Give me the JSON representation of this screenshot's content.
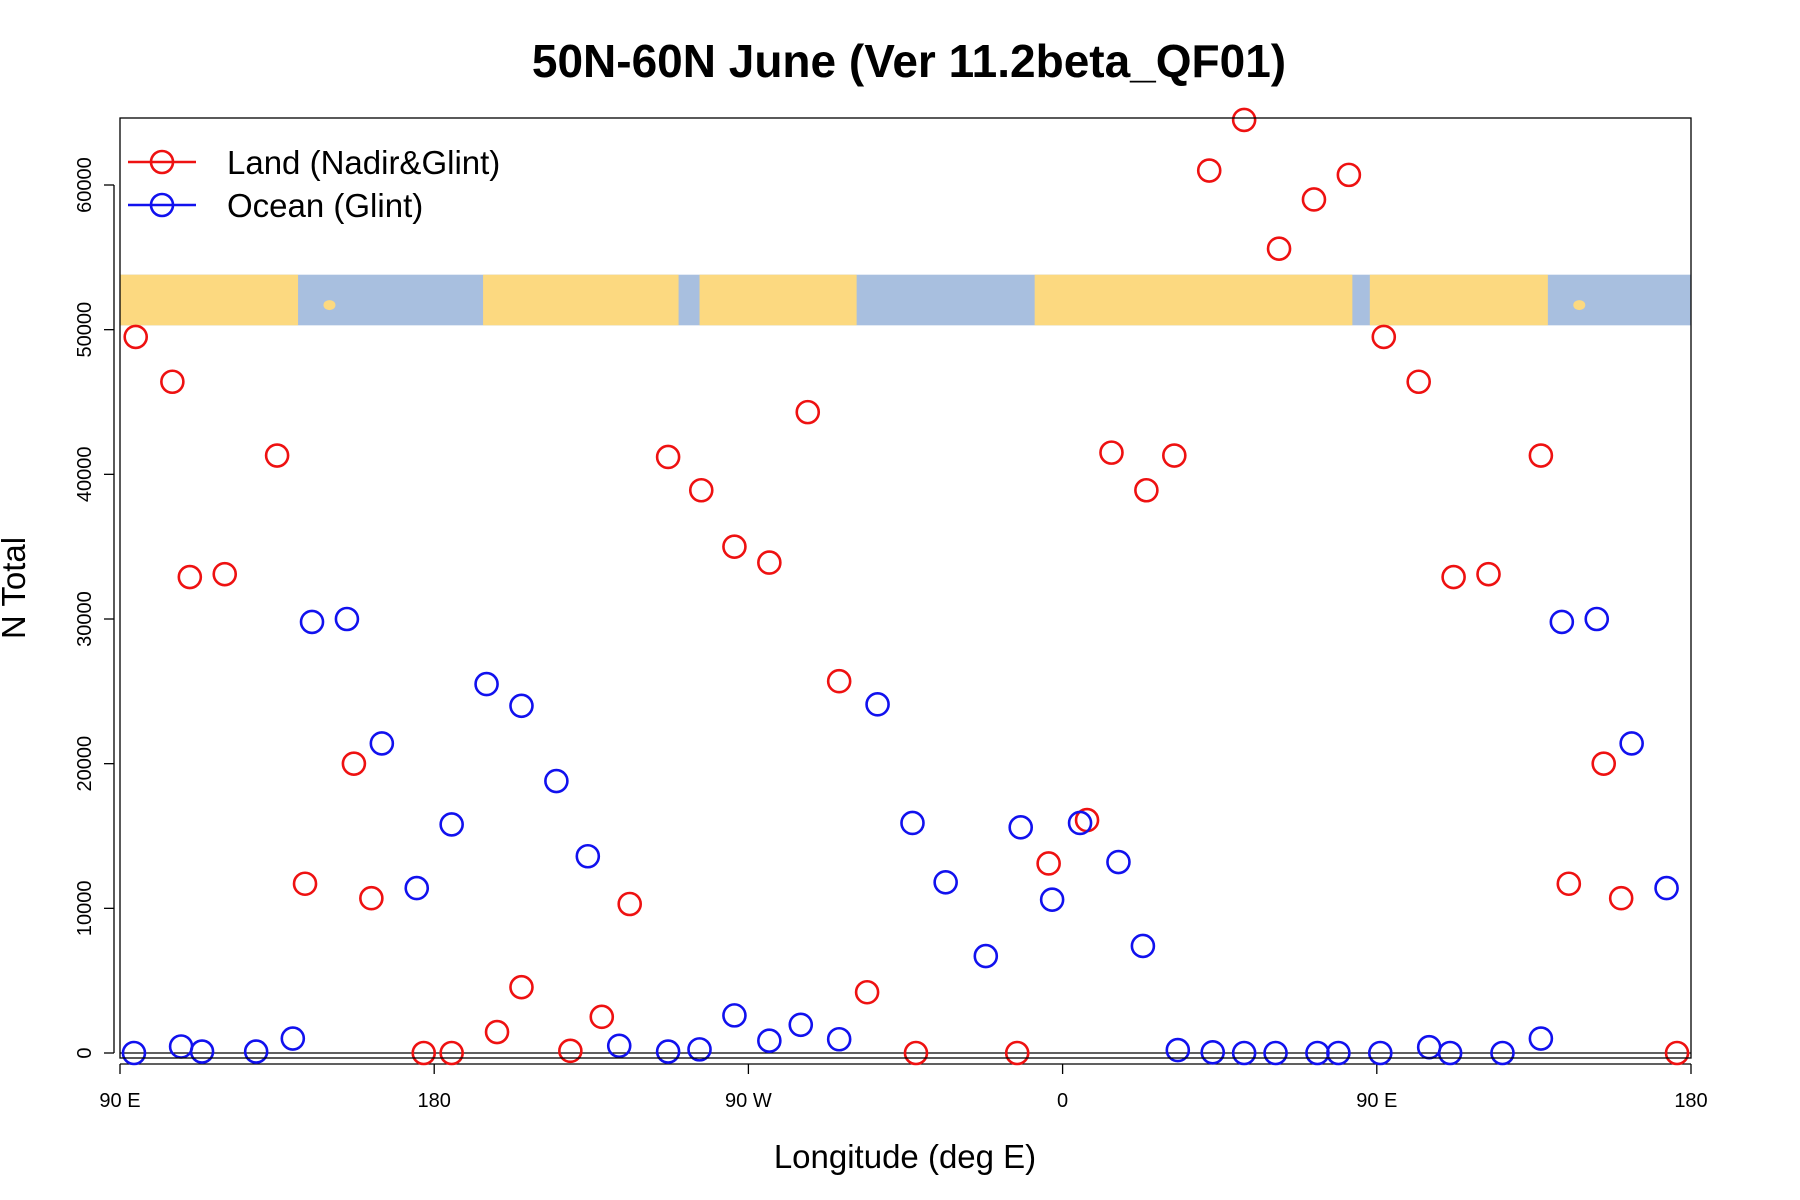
{
  "chart_data": {
    "type": "scatter",
    "title": "50N-60N June (Ver 11.2beta_QF01)",
    "xlabel": "Longitude (deg E)",
    "ylabel": "N Total",
    "xlim": [
      90,
      540
    ],
    "ylim": [
      0,
      64500
    ],
    "x_ticks": [
      {
        "value": 90,
        "label": "90 E"
      },
      {
        "value": 180,
        "label": "180"
      },
      {
        "value": 270,
        "label": "90 W"
      },
      {
        "value": 360,
        "label": "0"
      },
      {
        "value": 450,
        "label": "90 E"
      },
      {
        "value": 540,
        "label": "180"
      }
    ],
    "y_ticks": [
      {
        "value": 0,
        "label": "0"
      },
      {
        "value": 10000,
        "label": "10000"
      },
      {
        "value": 20000,
        "label": "20000"
      },
      {
        "value": 30000,
        "label": "30000"
      },
      {
        "value": 40000,
        "label": "40000"
      },
      {
        "value": 50000,
        "label": "50000"
      },
      {
        "value": 60000,
        "label": "60000"
      }
    ],
    "legend": {
      "position": "top-left"
    },
    "map_strip": {
      "y_range": [
        50300,
        53800
      ],
      "ocean_color": "#a8bfdf",
      "land_color": "#fcd980"
    },
    "series": [
      {
        "name": "Land (Nadir&Glint)",
        "color": "#ee1111",
        "points": [
          [
            94.5,
            49500
          ],
          [
            105,
            46400
          ],
          [
            110,
            32900
          ],
          [
            120,
            33100
          ],
          [
            135,
            41300
          ],
          [
            143,
            11700
          ],
          [
            157,
            20000
          ],
          [
            162,
            10700
          ],
          [
            177,
            0
          ],
          [
            185,
            0
          ],
          [
            198,
            1450
          ],
          [
            205,
            4550
          ],
          [
            219,
            150
          ],
          [
            228,
            2500
          ],
          [
            236,
            10300
          ],
          [
            247,
            41200
          ],
          [
            256.5,
            38900
          ],
          [
            266,
            35000
          ],
          [
            276,
            33900
          ],
          [
            287,
            44300
          ],
          [
            296,
            25700
          ],
          [
            304,
            4200
          ],
          [
            318,
            0
          ],
          [
            347,
            0
          ],
          [
            356,
            13100
          ],
          [
            367,
            16100
          ],
          [
            374,
            41500
          ],
          [
            384,
            38900
          ],
          [
            392,
            41300
          ],
          [
            402,
            61000
          ],
          [
            412,
            64500
          ],
          [
            422,
            55600
          ],
          [
            432,
            59000
          ],
          [
            442,
            60700
          ],
          [
            452,
            49500
          ],
          [
            462,
            46400
          ],
          [
            472,
            32900
          ],
          [
            482,
            33100
          ],
          [
            497,
            41300
          ],
          [
            505,
            11700
          ],
          [
            515,
            20000
          ],
          [
            520,
            10700
          ],
          [
            536,
            0
          ]
        ]
      },
      {
        "name": "Ocean (Glint)",
        "color": "#1111ee",
        "points": [
          [
            94,
            0
          ],
          [
            107.5,
            450
          ],
          [
            113.5,
            100
          ],
          [
            129,
            100
          ],
          [
            139.5,
            1000
          ],
          [
            145,
            29800
          ],
          [
            155,
            30000
          ],
          [
            165,
            21400
          ],
          [
            175,
            11400
          ],
          [
            185,
            15800
          ],
          [
            195,
            25500
          ],
          [
            205,
            24000
          ],
          [
            215,
            18800
          ],
          [
            224,
            13600
          ],
          [
            233,
            500
          ],
          [
            247,
            100
          ],
          [
            256,
            250
          ],
          [
            266,
            2600
          ],
          [
            276,
            850
          ],
          [
            285,
            1950
          ],
          [
            296,
            950
          ],
          [
            307,
            24100
          ],
          [
            317,
            15900
          ],
          [
            326.5,
            11800
          ],
          [
            338,
            6700
          ],
          [
            348,
            15600
          ],
          [
            357,
            10600
          ],
          [
            365,
            15900
          ],
          [
            376,
            13200
          ],
          [
            383,
            7400
          ],
          [
            393,
            200
          ],
          [
            403,
            50
          ],
          [
            412,
            0
          ],
          [
            421,
            0
          ],
          [
            433,
            0
          ],
          [
            439,
            0
          ],
          [
            451,
            0
          ],
          [
            465,
            400
          ],
          [
            471,
            0
          ],
          [
            486,
            0
          ],
          [
            497,
            1000
          ],
          [
            503,
            29800
          ],
          [
            513,
            30000
          ],
          [
            523,
            21400
          ],
          [
            533,
            11400
          ]
        ]
      }
    ]
  }
}
